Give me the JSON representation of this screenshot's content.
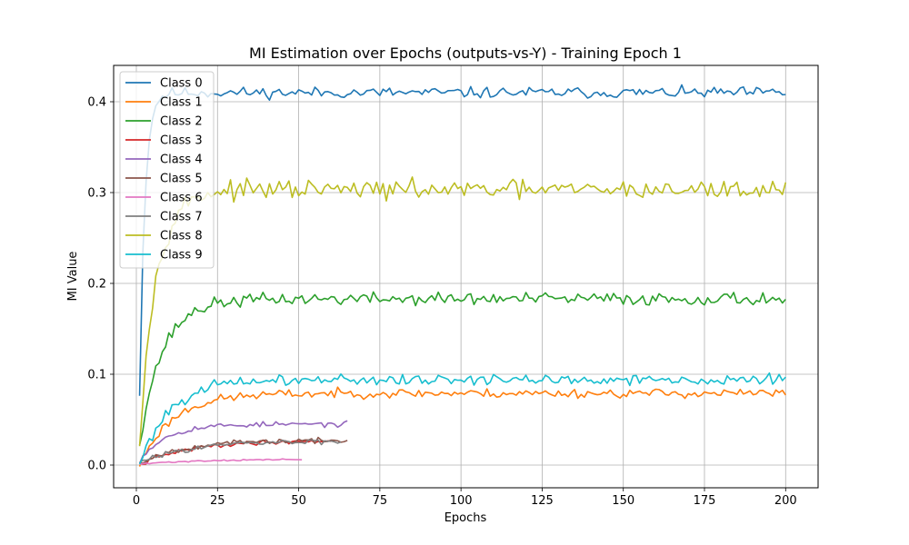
{
  "chart_data": {
    "type": "line",
    "title": "MI Estimation over Epochs (outputs-vs-Y) - Training Epoch 1",
    "xlabel": "Epochs",
    "ylabel": "MI Value",
    "xlim": [
      -7,
      210
    ],
    "ylim": [
      -0.025,
      0.44
    ],
    "xticks": [
      0,
      25,
      50,
      75,
      100,
      125,
      150,
      175,
      200
    ],
    "yticks": [
      0.0,
      0.1,
      0.2,
      0.3,
      0.4
    ],
    "ytick_labels": [
      "0.0",
      "0.1",
      "0.2",
      "0.3",
      "0.4"
    ],
    "grid": true,
    "legend_position": "top-left",
    "series": [
      {
        "name": "Class 0",
        "color": "#1f77b4",
        "length": 200,
        "plateau": 0.41,
        "start": 0.08,
        "tau": 1.6,
        "noise": 0.003,
        "seed": 11
      },
      {
        "name": "Class 1",
        "color": "#ff7f0e",
        "length": 200,
        "plateau": 0.079,
        "start": 0.0,
        "tau": 10.0,
        "noise": 0.0025,
        "seed": 23
      },
      {
        "name": "Class 2",
        "color": "#2ca02c",
        "length": 200,
        "plateau": 0.183,
        "start": 0.025,
        "tau": 7.0,
        "noise": 0.0035,
        "seed": 37
      },
      {
        "name": "Class 3",
        "color": "#d62728",
        "length": 60,
        "plateau": 0.027,
        "start": 0.0,
        "tau": 15.0,
        "noise": 0.0012,
        "seed": 41
      },
      {
        "name": "Class 4",
        "color": "#9467bd",
        "length": 65,
        "plateau": 0.045,
        "start": 0.005,
        "tau": 8.0,
        "noise": 0.0015,
        "seed": 53
      },
      {
        "name": "Class 5",
        "color": "#8c564b",
        "length": 65,
        "plateau": 0.027,
        "start": 0.002,
        "tau": 13.0,
        "noise": 0.0014,
        "seed": 67
      },
      {
        "name": "Class 6",
        "color": "#e377c2",
        "length": 51,
        "plateau": 0.0065,
        "start": 0.001,
        "tau": 18.0,
        "noise": 0.0004,
        "seed": 71
      },
      {
        "name": "Class 7",
        "color": "#7f7f7f",
        "length": 63,
        "plateau": 0.026,
        "start": 0.002,
        "tau": 14.0,
        "noise": 0.0013,
        "seed": 83
      },
      {
        "name": "Class 8",
        "color": "#bcbd22",
        "length": 200,
        "plateau": 0.303,
        "start": 0.03,
        "tau": 5.0,
        "noise": 0.005,
        "seed": 97
      },
      {
        "name": "Class 9",
        "color": "#17becf",
        "length": 200,
        "plateau": 0.094,
        "start": 0.0,
        "tau": 9.0,
        "noise": 0.003,
        "seed": 101
      }
    ]
  }
}
